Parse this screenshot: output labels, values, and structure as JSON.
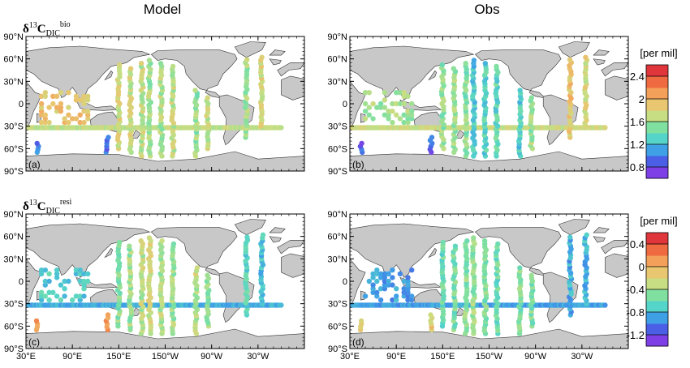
{
  "column_titles": [
    "Model",
    "Obs"
  ],
  "chart_data": {
    "type": "scatter",
    "x_ticks": [
      "30°E",
      "90°E",
      "150°E",
      "150°W",
      "90°W",
      "30°W"
    ],
    "y_ticks": [
      "90°N",
      "60°N",
      "30°N",
      "0",
      "30°S",
      "60°S",
      "90°S"
    ],
    "rows": [
      {
        "label_main": "δ",
        "label_sup": "13",
        "label_c": "C",
        "label_sub": "DIC",
        "label_sup2": "bio",
        "colorbar_title": "[per mil]",
        "colorbar_ticks": [
          "2.4",
          "2",
          "1.6",
          "1.2",
          "0.8"
        ],
        "colorbar_tick_values": [
          2.4,
          2.0,
          1.6,
          1.2,
          0.8
        ],
        "range": [
          0.6,
          2.6
        ],
        "colors": [
          "#7f3fe6",
          "#4a5fe6",
          "#3fa0e6",
          "#55d4c9",
          "#7fe0a0",
          "#c8de82",
          "#e8c770",
          "#f3a05a",
          "#ef6a40",
          "#e0353a"
        ],
        "panels": [
          {
            "letter": "(a)",
            "column": "Model",
            "tracks": [
              {
                "lon": [
                  50,
                  55,
                  60,
                  65,
                  70,
                  75,
                  80,
                  85,
                  90,
                  95,
                  100,
                  105,
                  110
                ],
                "lat": [
                  -25,
                  -20,
                  -15,
                  -10,
                  -5,
                  0,
                  5,
                  10,
                  15
                ],
                "value": 1.95,
                "kind": "grid"
              },
              {
                "lon_start": 30,
                "lon_end": 360,
                "lat": -32,
                "value": 1.7,
                "kind": "zonal"
              },
              {
                "lon": 150,
                "lat_start": -60,
                "lat_end": 55,
                "value": 1.8
              },
              {
                "lon": 165,
                "lat_start": -65,
                "lat_end": 50,
                "value": 1.75
              },
              {
                "lon": 180,
                "lat_start": -70,
                "lat_end": 55,
                "value": 1.7
              },
              {
                "lon": 190,
                "lat_start": -70,
                "lat_end": 58,
                "value": 1.6
              },
              {
                "lon": 205,
                "lat_start": -70,
                "lat_end": 55,
                "value": 1.65
              },
              {
                "lon": 220,
                "lat_start": -70,
                "lat_end": 52,
                "value": 1.7
              },
              {
                "lon": 250,
                "lat_start": -70,
                "lat_end": 20,
                "value": 1.55
              },
              {
                "lon": 265,
                "lat_start": -60,
                "lat_end": 10,
                "value": 1.7
              },
              {
                "lon": 315,
                "lat_start": -45,
                "lat_end": 60,
                "value": 1.6
              },
              {
                "lon": 335,
                "lat_start": -30,
                "lat_end": 65,
                "value": 1.8
              },
              {
                "lon": 135,
                "lat_start": -65,
                "lat_end": -45,
                "value": 0.9
              },
              {
                "lon": 45,
                "lat_start": -65,
                "lat_end": -50,
                "value": 0.9
              }
            ]
          },
          {
            "letter": "(b)",
            "column": "Obs",
            "tracks": [
              {
                "lon": [
                  50,
                  55,
                  60,
                  65,
                  70,
                  75,
                  80,
                  85,
                  90,
                  95,
                  100,
                  105,
                  110
                ],
                "lat": [
                  -25,
                  -20,
                  -15,
                  -10,
                  -5,
                  0,
                  5,
                  10,
                  15
                ],
                "value": 1.6,
                "kind": "grid"
              },
              {
                "lon_start": 30,
                "lon_end": 360,
                "lat": -32,
                "value": 1.75,
                "kind": "zonal"
              },
              {
                "lon": 150,
                "lat_start": -60,
                "lat_end": 55,
                "value": 1.55
              },
              {
                "lon": 165,
                "lat_start": -65,
                "lat_end": 50,
                "value": 1.6
              },
              {
                "lon": 180,
                "lat_start": -70,
                "lat_end": 55,
                "value": 1.5
              },
              {
                "lon": 190,
                "lat_start": -70,
                "lat_end": 58,
                "value": 1.2
              },
              {
                "lon": 205,
                "lat_start": -70,
                "lat_end": 55,
                "value": 1.3
              },
              {
                "lon": 220,
                "lat_start": -70,
                "lat_end": 52,
                "value": 1.35
              },
              {
                "lon": 250,
                "lat_start": -70,
                "lat_end": 20,
                "value": 1.25
              },
              {
                "lon": 265,
                "lat_start": -60,
                "lat_end": 10,
                "value": 1.6
              },
              {
                "lon": 315,
                "lat_start": -45,
                "lat_end": 60,
                "value": 1.95
              },
              {
                "lon": 335,
                "lat_start": -30,
                "lat_end": 65,
                "value": 1.8
              },
              {
                "lon": 135,
                "lat_start": -65,
                "lat_end": -45,
                "value": 0.8
              },
              {
                "lon": 45,
                "lat_start": -65,
                "lat_end": -50,
                "value": 0.8
              }
            ]
          }
        ]
      },
      {
        "label_main": "δ",
        "label_sup": "13",
        "label_c": "C",
        "label_sub": "DIC",
        "label_sup2": "resi",
        "colorbar_title": "[per mil]",
        "colorbar_ticks": [
          "0.4",
          "0",
          "-0.4",
          "-0.8",
          "-1.2"
        ],
        "colorbar_tick_values": [
          0.4,
          0.0,
          -0.4,
          -0.8,
          -1.2
        ],
        "range": [
          -1.4,
          0.6
        ],
        "colors": [
          "#7f3fe6",
          "#4a5fe6",
          "#3fa0e6",
          "#55d4c9",
          "#7fe0a0",
          "#c8de82",
          "#e8c770",
          "#f3a05a",
          "#ef6a40",
          "#e0353a"
        ],
        "panels": [
          {
            "letter": "(c)",
            "column": "Model",
            "tracks": [
              {
                "lon": [
                  50,
                  55,
                  60,
                  65,
                  70,
                  75,
                  80,
                  85,
                  90,
                  95,
                  100,
                  105,
                  110
                ],
                "lat": [
                  -25,
                  -20,
                  -15,
                  -10,
                  -5,
                  0,
                  5,
                  10,
                  15
                ],
                "value": -0.75,
                "kind": "grid"
              },
              {
                "lon_start": 30,
                "lon_end": 360,
                "lat": -32,
                "value": -0.9,
                "kind": "zonal"
              },
              {
                "lon": 150,
                "lat_start": -60,
                "lat_end": 55,
                "value": -0.5
              },
              {
                "lon": 165,
                "lat_start": -65,
                "lat_end": 50,
                "value": -0.4
              },
              {
                "lon": 180,
                "lat_start": -70,
                "lat_end": 55,
                "value": -0.3
              },
              {
                "lon": 190,
                "lat_start": -70,
                "lat_end": 58,
                "value": -0.2
              },
              {
                "lon": 205,
                "lat_start": -70,
                "lat_end": 55,
                "value": -0.35
              },
              {
                "lon": 220,
                "lat_start": -70,
                "lat_end": 52,
                "value": -0.4
              },
              {
                "lon": 250,
                "lat_start": -70,
                "lat_end": 20,
                "value": -0.3
              },
              {
                "lon": 265,
                "lat_start": -60,
                "lat_end": 10,
                "value": -0.45
              },
              {
                "lon": 315,
                "lat_start": -45,
                "lat_end": 60,
                "value": -0.7
              },
              {
                "lon": 335,
                "lat_start": -30,
                "lat_end": 65,
                "value": -0.8
              },
              {
                "lon": 135,
                "lat_start": -65,
                "lat_end": -45,
                "value": 0.1
              },
              {
                "lon": 45,
                "lat_start": -65,
                "lat_end": -50,
                "value": 0.1
              }
            ]
          },
          {
            "letter": "(d)",
            "column": "Obs",
            "tracks": [
              {
                "lon": [
                  50,
                  55,
                  60,
                  65,
                  70,
                  75,
                  80,
                  85,
                  90,
                  95,
                  100,
                  105,
                  110
                ],
                "lat": [
                  -25,
                  -20,
                  -15,
                  -10,
                  -5,
                  0,
                  5,
                  10,
                  15
                ],
                "value": -0.95,
                "kind": "grid"
              },
              {
                "lon_start": 30,
                "lon_end": 360,
                "lat": -32,
                "value": -0.95,
                "kind": "zonal"
              },
              {
                "lon": 150,
                "lat_start": -60,
                "lat_end": 55,
                "value": -0.6
              },
              {
                "lon": 165,
                "lat_start": -65,
                "lat_end": 50,
                "value": -0.55
              },
              {
                "lon": 180,
                "lat_start": -70,
                "lat_end": 55,
                "value": -0.5
              },
              {
                "lon": 190,
                "lat_start": -70,
                "lat_end": 58,
                "value": -0.45
              },
              {
                "lon": 205,
                "lat_start": -70,
                "lat_end": 55,
                "value": -0.55
              },
              {
                "lon": 220,
                "lat_start": -70,
                "lat_end": 52,
                "value": -0.6
              },
              {
                "lon": 250,
                "lat_start": -70,
                "lat_end": 20,
                "value": -0.5
              },
              {
                "lon": 265,
                "lat_start": -60,
                "lat_end": 10,
                "value": -0.5
              },
              {
                "lon": 315,
                "lat_start": -45,
                "lat_end": 60,
                "value": -0.9
              },
              {
                "lon": 335,
                "lat_start": -30,
                "lat_end": 65,
                "value": -0.85
              },
              {
                "lon": 135,
                "lat_start": -65,
                "lat_end": -45,
                "value": -0.1
              },
              {
                "lon": 45,
                "lat_start": -65,
                "lat_end": -50,
                "value": -0.1
              }
            ]
          }
        ]
      }
    ]
  }
}
